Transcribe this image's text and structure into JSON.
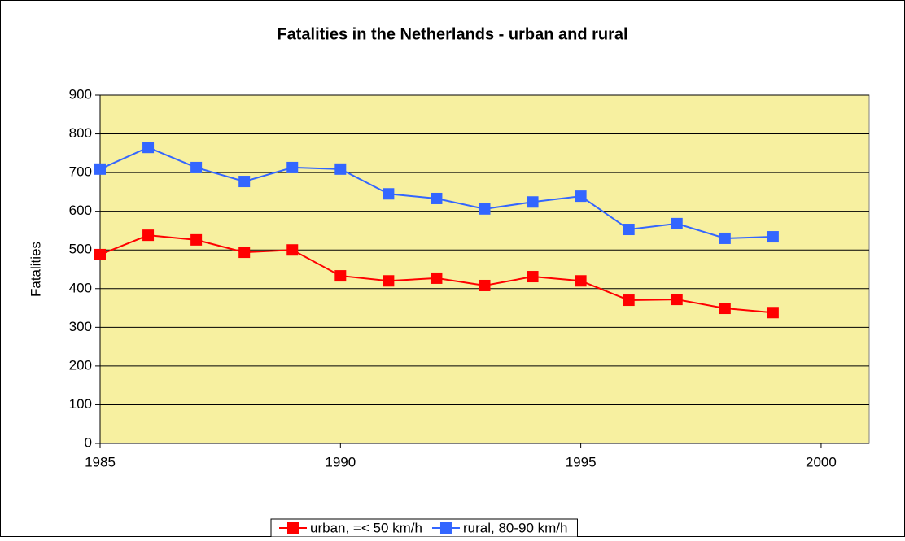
{
  "chart_data": {
    "type": "line",
    "title": "Fatalities in the Netherlands - urban and rural",
    "y_label": "Fatalities",
    "x": [
      1985,
      1986,
      1987,
      1988,
      1989,
      1990,
      1991,
      1992,
      1993,
      1994,
      1995,
      1996,
      1997,
      1998,
      1999
    ],
    "series": [
      {
        "name": "urban, =< 50 km/h",
        "color": "#ff0000",
        "values": [
          488,
          538,
          526,
          494,
          500,
          433,
          420,
          427,
          408,
          431,
          420,
          370,
          372,
          349,
          338
        ]
      },
      {
        "name": "rural, 80-90 km/h",
        "color": "#3366ff",
        "values": [
          709,
          765,
          713,
          677,
          713,
          709,
          645,
          633,
          606,
          624,
          639,
          553,
          568,
          530,
          534
        ]
      }
    ],
    "xlim": [
      1985,
      2001
    ],
    "xticks": [
      1985,
      1990,
      1995,
      2000
    ],
    "ylim": [
      0,
      900
    ],
    "yticks": [
      0,
      100,
      200,
      300,
      400,
      500,
      600,
      700,
      800,
      900
    ],
    "grid": true,
    "legend": "bottom",
    "plot_background": "#f7f0a0"
  }
}
